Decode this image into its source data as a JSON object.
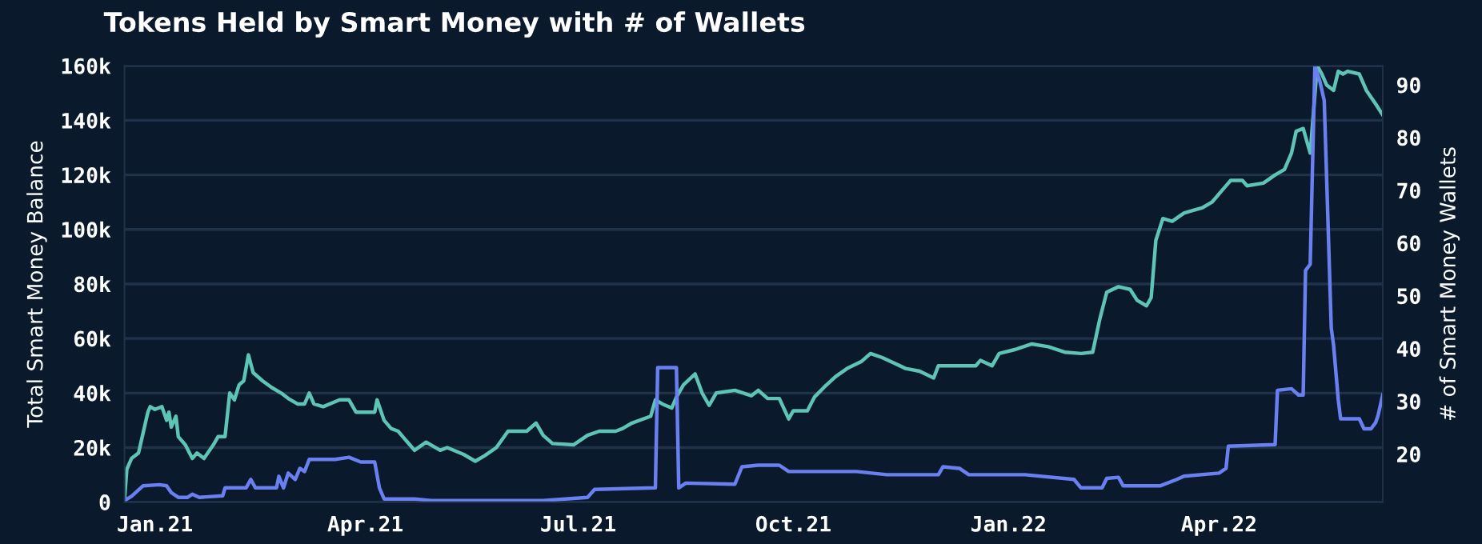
{
  "chart_data": {
    "type": "line",
    "title": "Tokens Held by Smart Money with # of Wallets",
    "ylabel": "Total Smart Money Balance",
    "y2label": "# of Smart Money Wallets",
    "xlim": [
      "2020-12-19",
      "2022-06-10"
    ],
    "xticks": [
      {
        "value": "2021-01-01",
        "label": "Jan.21"
      },
      {
        "value": "2021-04-01",
        "label": "Apr.21"
      },
      {
        "value": "2021-07-01",
        "label": "Jul.21"
      },
      {
        "value": "2021-10-01",
        "label": "Oct.21"
      },
      {
        "value": "2022-01-01",
        "label": "Jan.22"
      },
      {
        "value": "2022-04-01",
        "label": "Apr.22"
      }
    ],
    "ylim": [
      0,
      160000
    ],
    "yticks": [
      {
        "value": 0,
        "label": "0"
      },
      {
        "value": 20000,
        "label": "20k"
      },
      {
        "value": 40000,
        "label": "40k"
      },
      {
        "value": 60000,
        "label": "60k"
      },
      {
        "value": 80000,
        "label": "80k"
      },
      {
        "value": 100000,
        "label": "100k"
      },
      {
        "value": 120000,
        "label": "120k"
      },
      {
        "value": 140000,
        "label": "140k"
      },
      {
        "value": 160000,
        "label": "160k"
      }
    ],
    "y2lim": [
      10.9,
      93.6
    ],
    "y2ticks": [
      20,
      30,
      40,
      50,
      60,
      70,
      80,
      90
    ],
    "grid": "y",
    "marker": "none",
    "line_style": "solid",
    "series": [
      {
        "color": "#5ec4b6",
        "x": [
          "2020-12-19",
          "2020-12-20",
          "2020-12-22",
          "2020-12-25",
          "2020-12-29",
          "2020-12-30",
          "2021-01-01",
          "2021-01-04",
          "2021-01-06",
          "2021-01-07",
          "2021-01-08",
          "2021-01-10",
          "2021-01-11",
          "2021-01-14",
          "2021-01-17",
          "2021-01-19",
          "2021-01-22",
          "2021-01-26",
          "2021-01-28",
          "2021-01-31",
          "2021-02-02",
          "2021-02-04",
          "2021-02-06",
          "2021-02-08",
          "2021-02-10",
          "2021-02-12",
          "2021-02-16",
          "2021-02-20",
          "2021-02-24",
          "2021-02-27",
          "2021-03-03",
          "2021-03-06",
          "2021-03-08",
          "2021-03-10",
          "2021-03-14",
          "2021-03-21",
          "2021-03-25",
          "2021-03-28",
          "2021-04-05",
          "2021-04-06",
          "2021-04-09",
          "2021-04-12",
          "2021-04-15",
          "2021-04-20",
          "2021-04-22",
          "2021-04-27",
          "2021-04-29",
          "2021-05-03",
          "2021-05-06",
          "2021-05-13",
          "2021-05-18",
          "2021-05-22",
          "2021-05-27",
          "2021-06-01",
          "2021-06-09",
          "2021-06-13",
          "2021-06-16",
          "2021-06-20",
          "2021-06-29",
          "2021-07-05",
          "2021-07-10",
          "2021-07-17",
          "2021-07-20",
          "2021-07-24",
          "2021-08-01",
          "2021-08-03",
          "2021-08-06",
          "2021-08-10",
          "2021-08-12",
          "2021-08-15",
          "2021-08-20",
          "2021-08-23",
          "2021-08-26",
          "2021-08-29",
          "2021-09-06",
          "2021-09-13",
          "2021-09-16",
          "2021-09-20",
          "2021-09-25",
          "2021-09-29",
          "2021-10-01",
          "2021-10-07",
          "2021-10-10",
          "2021-10-14",
          "2021-10-19",
          "2021-10-24",
          "2021-10-30",
          "2021-11-03",
          "2021-11-08",
          "2021-11-13",
          "2021-11-18",
          "2021-11-24",
          "2021-11-30",
          "2021-12-02",
          "2021-12-18",
          "2021-12-20",
          "2021-12-25",
          "2021-12-28",
          "2022-01-04",
          "2022-01-11",
          "2022-01-18",
          "2022-01-25",
          "2022-02-01",
          "2022-02-06",
          "2022-02-09",
          "2022-02-12",
          "2022-02-17",
          "2022-02-22",
          "2022-02-25",
          "2022-03-01",
          "2022-03-03",
          "2022-03-05",
          "2022-03-08",
          "2022-03-12",
          "2022-03-17",
          "2022-03-21",
          "2022-03-25",
          "2022-03-29",
          "2022-04-03",
          "2022-04-06",
          "2022-04-11",
          "2022-04-13",
          "2022-04-20",
          "2022-04-25",
          "2022-04-29",
          "2022-05-02",
          "2022-05-04",
          "2022-05-07",
          "2022-05-10",
          "2022-05-13",
          "2022-05-15",
          "2022-05-17",
          "2022-05-20",
          "2022-05-22",
          "2022-05-24",
          "2022-05-26",
          "2022-05-31",
          "2022-06-03",
          "2022-06-07",
          "2022-06-10"
        ],
        "values": [
          1000,
          12000,
          16000,
          18000,
          33000,
          35000,
          34000,
          35000,
          30000,
          33000,
          27500,
          31500,
          24000,
          21000,
          16000,
          18000,
          16000,
          21000,
          24000,
          24000,
          40000,
          37500,
          43000,
          44500,
          54000,
          47500,
          44500,
          42000,
          40000,
          38000,
          36000,
          36000,
          40000,
          36000,
          35000,
          37500,
          37500,
          33000,
          33000,
          37500,
          30000,
          27000,
          26000,
          21000,
          19000,
          22000,
          21000,
          19000,
          20000,
          17500,
          15000,
          17000,
          20000,
          26000,
          26000,
          29000,
          24500,
          21500,
          21000,
          24500,
          26000,
          26000,
          27000,
          29000,
          31500,
          37500,
          36000,
          34500,
          38500,
          43000,
          47000,
          40000,
          35500,
          40000,
          41000,
          39000,
          41000,
          38000,
          38000,
          30500,
          33500,
          33500,
          38500,
          42000,
          46000,
          49000,
          51500,
          54500,
          53000,
          51000,
          49000,
          48000,
          45500,
          50000,
          50000,
          52000,
          50000,
          54500,
          56000,
          58000,
          57000,
          55000,
          54500,
          55000,
          67000,
          77000,
          79000,
          78000,
          74000,
          72000,
          75000,
          96000,
          104000,
          103000,
          106000,
          107000,
          108000,
          110000,
          115000,
          118000,
          118000,
          116000,
          117000,
          120000,
          122000,
          128000,
          136000,
          137000,
          128000,
          160000,
          157000,
          153000,
          151000,
          158000,
          157000,
          158000,
          157000,
          151000,
          146000,
          142000
        ]
      },
      {
        "color": "#6a7ff0",
        "axis": "y2",
        "x": [
          "2020-12-19",
          "2020-12-22",
          "2020-12-27",
          "2021-01-03",
          "2021-01-06",
          "2021-01-08",
          "2021-01-11",
          "2021-01-15",
          "2021-01-17",
          "2021-01-20",
          "2021-01-30",
          "2021-01-31",
          "2021-02-09",
          "2021-02-11",
          "2021-02-13",
          "2021-02-22",
          "2021-02-23",
          "2021-02-25",
          "2021-02-27",
          "2021-03-02",
          "2021-03-04",
          "2021-03-06",
          "2021-03-08",
          "2021-03-19",
          "2021-03-25",
          "2021-03-30",
          "2021-04-05",
          "2021-04-07",
          "2021-04-09",
          "2021-04-22",
          "2021-04-29",
          "2021-06-16",
          "2021-07-05",
          "2021-07-08",
          "2021-08-03",
          "2021-08-04",
          "2021-08-12",
          "2021-08-13",
          "2021-08-16",
          "2021-09-06",
          "2021-09-09",
          "2021-09-16",
          "2021-09-25",
          "2021-09-29",
          "2021-10-28",
          "2021-11-10",
          "2021-12-02",
          "2021-12-04",
          "2021-12-11",
          "2021-12-15",
          "2022-01-08",
          "2022-01-29",
          "2022-02-01",
          "2022-02-10",
          "2022-02-12",
          "2022-02-17",
          "2022-02-19",
          "2022-03-07",
          "2022-03-14",
          "2022-03-17",
          "2022-04-01",
          "2022-04-04",
          "2022-04-05",
          "2022-04-25",
          "2022-04-26",
          "2022-05-02",
          "2022-05-05",
          "2022-05-07",
          "2022-05-08",
          "2022-05-10",
          "2022-05-12",
          "2022-05-14",
          "2022-05-16",
          "2022-05-19",
          "2022-05-20",
          "2022-05-22",
          "2022-05-23",
          "2022-05-31",
          "2022-06-02",
          "2022-06-05",
          "2022-06-07",
          "2022-06-08",
          "2022-06-10"
        ],
        "values": [
          11.2,
          12,
          14,
          14.2,
          14,
          12.7,
          11.8,
          11.8,
          12.4,
          11.8,
          12.1,
          13.6,
          13.6,
          15.2,
          13.6,
          13.6,
          15.8,
          13.6,
          16.4,
          15.2,
          17.3,
          16.7,
          19,
          19,
          19.4,
          18.5,
          18.5,
          13.6,
          11.5,
          11.5,
          11.2,
          11.2,
          11.8,
          13.3,
          13.6,
          36.4,
          36.4,
          13.6,
          14.5,
          14.3,
          17.6,
          17.9,
          17.9,
          16.7,
          16.7,
          16.1,
          16.1,
          17.6,
          17.3,
          16.1,
          16.1,
          15.2,
          13.6,
          13.6,
          15.4,
          15.6,
          14,
          14,
          15.2,
          15.8,
          16.4,
          17.3,
          21.5,
          21.8,
          32.1,
          32.4,
          31.2,
          31.2,
          54.8,
          56,
          93.6,
          90.9,
          87,
          43.9,
          40.6,
          30.3,
          26.7,
          26.7,
          24.8,
          24.8,
          26,
          27.3,
          31.2
        ]
      }
    ]
  }
}
